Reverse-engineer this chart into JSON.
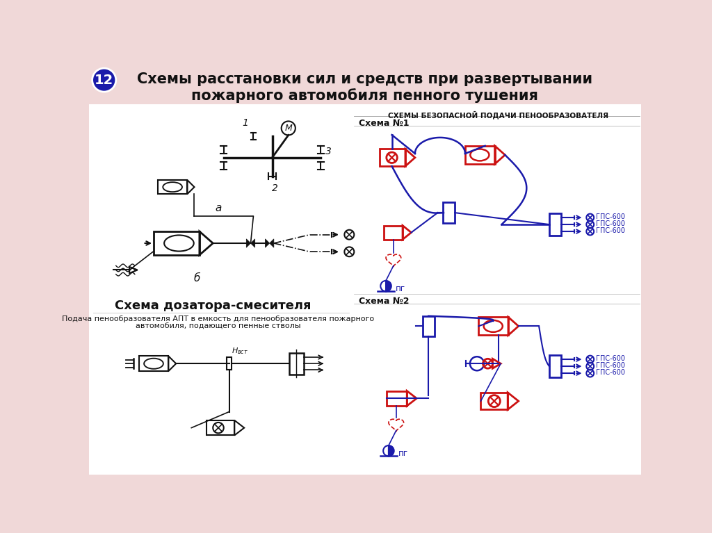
{
  "title": "Схемы расстановки сил и средств при развертывании\nпожарного автомобиля пенного тушения",
  "slide_number": "12",
  "bg_pink": "#f0d8d8",
  "bg_white": "#ffffff",
  "blue": "#1a1aaa",
  "red": "#cc1111",
  "black": "#111111",
  "right_title": "СХЕМЫ БЕЗОПАСНОЙ ПОДАЧИ ПЕНООБРАЗОВАТЕЛЯ",
  "schema1_title": "Схема №1",
  "schema2_title": "Схема №2",
  "caption1": "Схема дозатора-смесителя",
  "caption2_line1": "Подача пенообразователя АПТ в емкость для пенообразователя пожарного",
  "caption2_line2": "автомобиля, подающего пенные стволы",
  "gps": "ГПС-600",
  "pg": "пг"
}
